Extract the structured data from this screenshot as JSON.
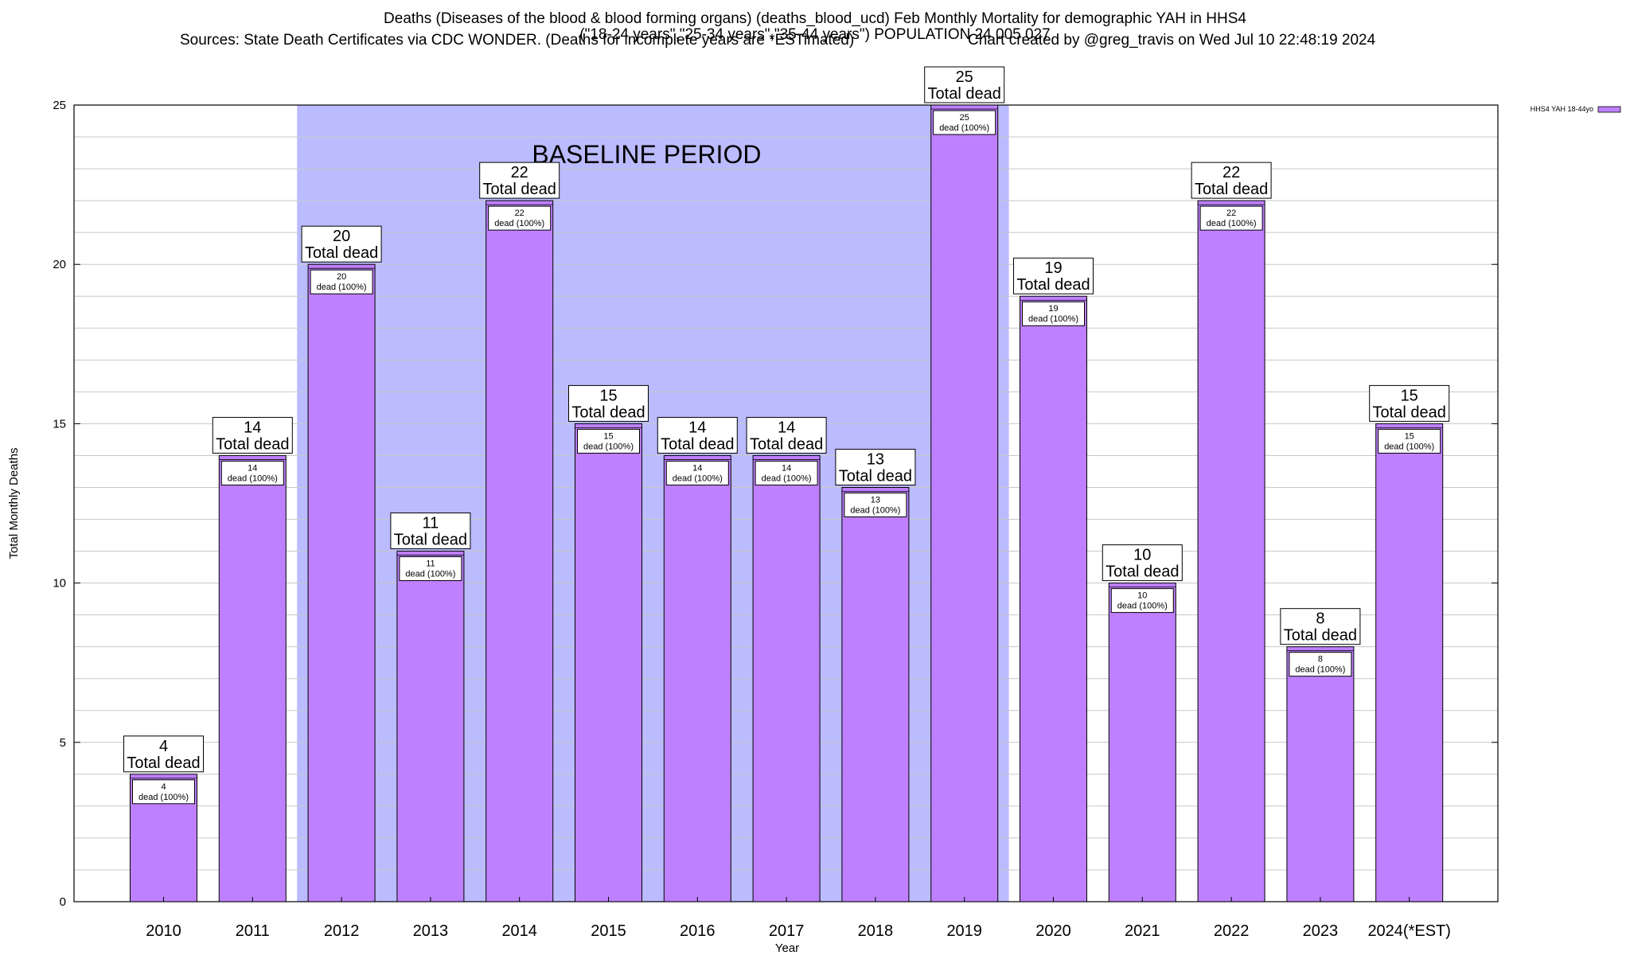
{
  "title": {
    "line1": "Deaths (Diseases of the blood & blood forming organs) (deaths_blood_ucd) Feb Monthly Mortality for demographic YAH in HHS4",
    "line2": "(\"18-24 years\",\"25-34 years\",\"35-44 years\") POPULATION 24,005,027",
    "sources": "Sources: State Death Certificates via CDC WONDER. (Deaths for incomplete years are *ESTimated)",
    "credit": "Chart created by @greg_travis on Wed Jul 10 22:48:19 2024"
  },
  "chart_data": {
    "type": "bar",
    "xlabel": "Year",
    "ylabel": "Total Monthly Deaths",
    "ylim": [
      0,
      25
    ],
    "yticks": [
      0,
      5,
      10,
      15,
      20,
      25
    ],
    "categories": [
      "2010",
      "2011",
      "2012",
      "2013",
      "2014",
      "2015",
      "2016",
      "2017",
      "2018",
      "2019",
      "2020",
      "2021",
      "2022",
      "2023",
      "2024(*EST)"
    ],
    "series": [
      {
        "name": "HHS4 YAH 18-44yo",
        "values": [
          4,
          14,
          20,
          11,
          22,
          15,
          14,
          14,
          13,
          25,
          19,
          10,
          22,
          8,
          15
        ],
        "color": "#bf80ff"
      }
    ],
    "total_label": "Total dead",
    "inner_label": "dead (100%)",
    "baseline": {
      "label": "BASELINE PERIOD",
      "from": "2012",
      "to": "2019",
      "color": "#bbbbff"
    },
    "grid": true,
    "legend_position": "top-right"
  }
}
